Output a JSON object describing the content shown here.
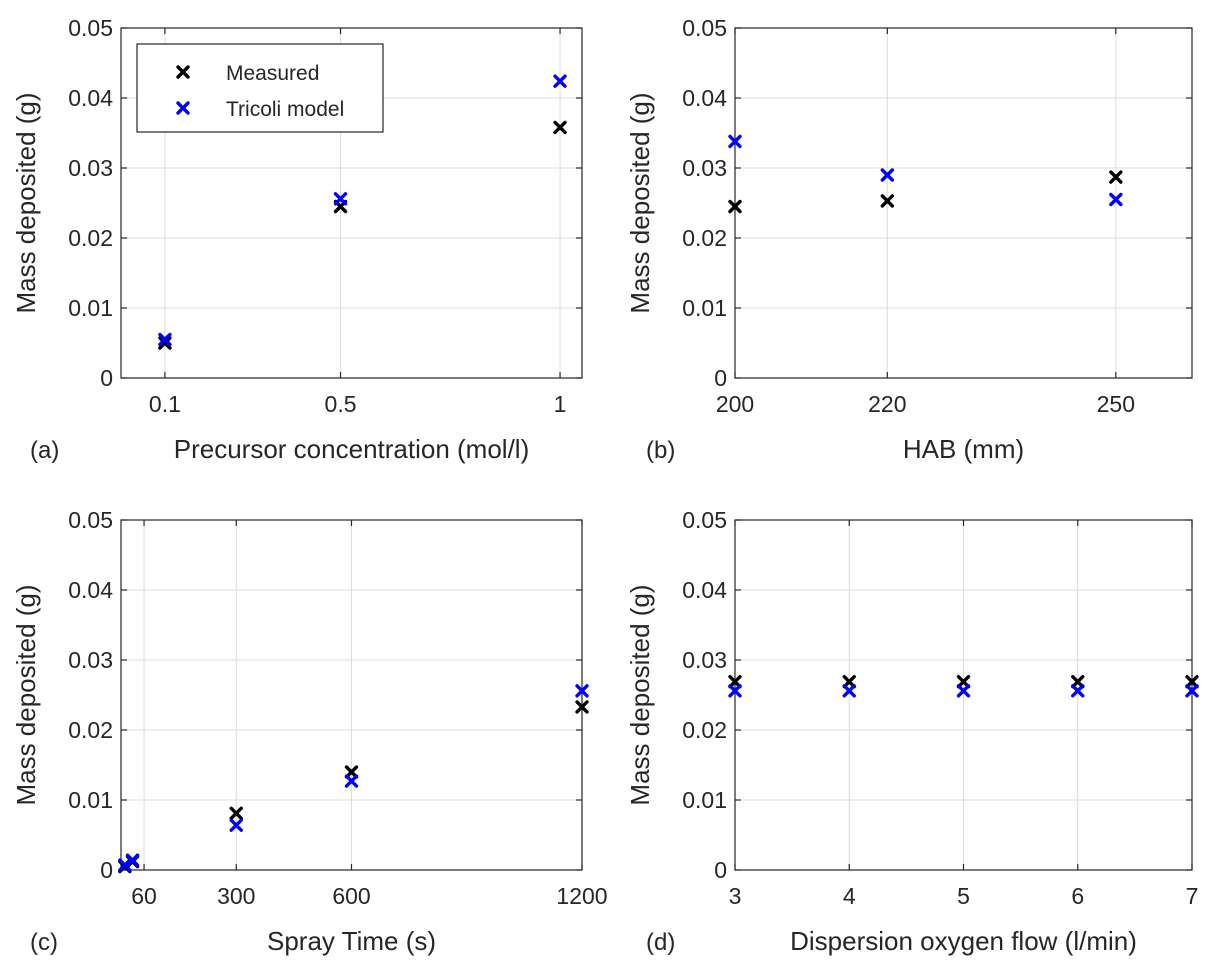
{
  "figure": {
    "legend": {
      "items": [
        {
          "label": "Measured",
          "color": "#000000"
        },
        {
          "label": "Tricoli model",
          "color": "#0000ff"
        }
      ]
    }
  },
  "chart_data": [
    {
      "type": "scatter",
      "panel": "(a)",
      "xlabel": "Precursor concentration (mol/l)",
      "ylabel": "Mass deposited (g)",
      "xlim": [
        0,
        1.05
      ],
      "ylim": [
        0,
        0.05
      ],
      "xticks": [
        0.1,
        0.5,
        1
      ],
      "xtick_labels": [
        "0.1",
        "0.5",
        "1"
      ],
      "yticks": [
        0,
        0.01,
        0.02,
        0.03,
        0.04,
        0.05
      ],
      "ytick_labels": [
        "0",
        "0.01",
        "0.02",
        "0.03",
        "0.04",
        "0.05"
      ],
      "legend_position": "top-left",
      "series": [
        {
          "name": "Measured",
          "color": "#000000",
          "x": [
            0.1,
            0.5,
            1
          ],
          "y": [
            0.005,
            0.0245,
            0.0358
          ]
        },
        {
          "name": "Tricoli model",
          "color": "#0000ff",
          "x": [
            0.1,
            0.5,
            1
          ],
          "y": [
            0.0055,
            0.0256,
            0.0424
          ]
        }
      ]
    },
    {
      "type": "scatter",
      "panel": "(b)",
      "xlabel": "HAB (mm)",
      "ylabel": "Mass deposited (g)",
      "xlim": [
        200,
        260
      ],
      "ylim": [
        0,
        0.05
      ],
      "xticks": [
        200,
        220,
        250
      ],
      "xtick_labels": [
        "200",
        "220",
        "250"
      ],
      "yticks": [
        0,
        0.01,
        0.02,
        0.03,
        0.04,
        0.05
      ],
      "ytick_labels": [
        "0",
        "0.01",
        "0.02",
        "0.03",
        "0.04",
        "0.05"
      ],
      "series": [
        {
          "name": "Measured",
          "color": "#000000",
          "x": [
            200,
            220,
            250
          ],
          "y": [
            0.0245,
            0.0253,
            0.0287
          ]
        },
        {
          "name": "Tricoli model",
          "color": "#0000ff",
          "x": [
            200,
            220,
            250
          ],
          "y": [
            0.0338,
            0.029,
            0.0255
          ]
        }
      ]
    },
    {
      "type": "scatter",
      "panel": "(c)",
      "xlabel": "Spray Time (s)",
      "ylabel": "Mass deposited (g)",
      "xlim": [
        0,
        1200
      ],
      "ylim": [
        0,
        0.05
      ],
      "xticks": [
        60,
        300,
        600,
        1200
      ],
      "xtick_labels": [
        "60",
        "300",
        "600",
        "1200"
      ],
      "yticks": [
        0,
        0.01,
        0.02,
        0.03,
        0.04,
        0.05
      ],
      "ytick_labels": [
        "0",
        "0.01",
        "0.02",
        "0.03",
        "0.04",
        "0.05"
      ],
      "series": [
        {
          "name": "Measured",
          "color": "#000000",
          "x": [
            10,
            30,
            300,
            600,
            1200
          ],
          "y": [
            0.0005,
            0.0012,
            0.0081,
            0.014,
            0.0233
          ]
        },
        {
          "name": "Tricoli model",
          "color": "#0000ff",
          "x": [
            10,
            30,
            300,
            600,
            1200
          ],
          "y": [
            0.0007,
            0.0014,
            0.0064,
            0.0127,
            0.0256
          ]
        }
      ]
    },
    {
      "type": "scatter",
      "panel": "(d)",
      "xlabel": "Dispersion oxygen flow (l/min)",
      "ylabel": "Mass deposited (g)",
      "xlim": [
        3,
        7
      ],
      "ylim": [
        0,
        0.05
      ],
      "xticks": [
        3,
        4,
        5,
        6,
        7
      ],
      "xtick_labels": [
        "3",
        "4",
        "5",
        "6",
        "7"
      ],
      "yticks": [
        0,
        0.01,
        0.02,
        0.03,
        0.04,
        0.05
      ],
      "ytick_labels": [
        "0",
        "0.01",
        "0.02",
        "0.03",
        "0.04",
        "0.05"
      ],
      "series": [
        {
          "name": "Measured",
          "color": "#000000",
          "x": [
            3,
            4,
            5,
            6,
            7
          ],
          "y": [
            0.0269,
            0.0269,
            0.0269,
            0.0269,
            0.0269
          ]
        },
        {
          "name": "Tricoli model",
          "color": "#0000ff",
          "x": [
            3,
            4,
            5,
            6,
            7
          ],
          "y": [
            0.0256,
            0.0256,
            0.0256,
            0.0256,
            0.0256
          ]
        }
      ]
    }
  ]
}
